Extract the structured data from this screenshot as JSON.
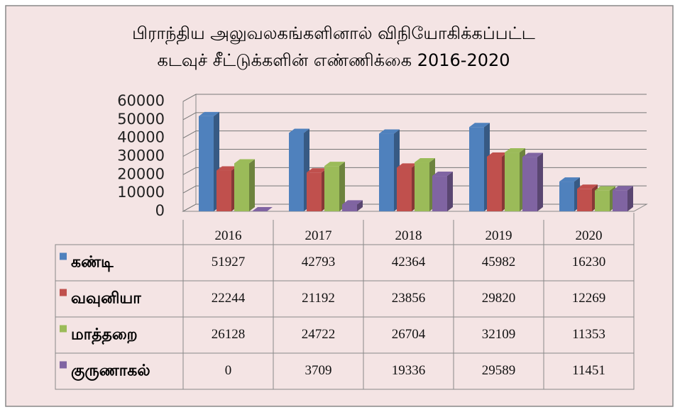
{
  "chart_data": {
    "type": "bar3d",
    "title": "பிராந்திய அலுவலகங்களினால் விநியோகிக்கப்பட்ட கடவுச் சீட்டுக்களின் எண்ணிக்கை 2016-2020",
    "categories": [
      "2016",
      "2017",
      "2018",
      "2019",
      "2020"
    ],
    "series": [
      {
        "name": "கண்டி",
        "color": "#4f81bd",
        "values": [
          51927,
          42793,
          42364,
          45982,
          16230
        ]
      },
      {
        "name": "வவுனியா",
        "color": "#c0504d",
        "values": [
          22244,
          21192,
          23856,
          29820,
          12269
        ]
      },
      {
        "name": "மாத்தறை",
        "color": "#9bbb59",
        "values": [
          26128,
          24722,
          26704,
          32109,
          11353
        ]
      },
      {
        "name": "குருணாகல்",
        "color": "#8064a2",
        "values": [
          0,
          3709,
          19336,
          29589,
          11451
        ]
      }
    ],
    "ylim": [
      0,
      60000
    ],
    "yticks": [
      0,
      10000,
      20000,
      30000,
      40000,
      50000,
      60000
    ],
    "grid": true,
    "data_table": true
  }
}
